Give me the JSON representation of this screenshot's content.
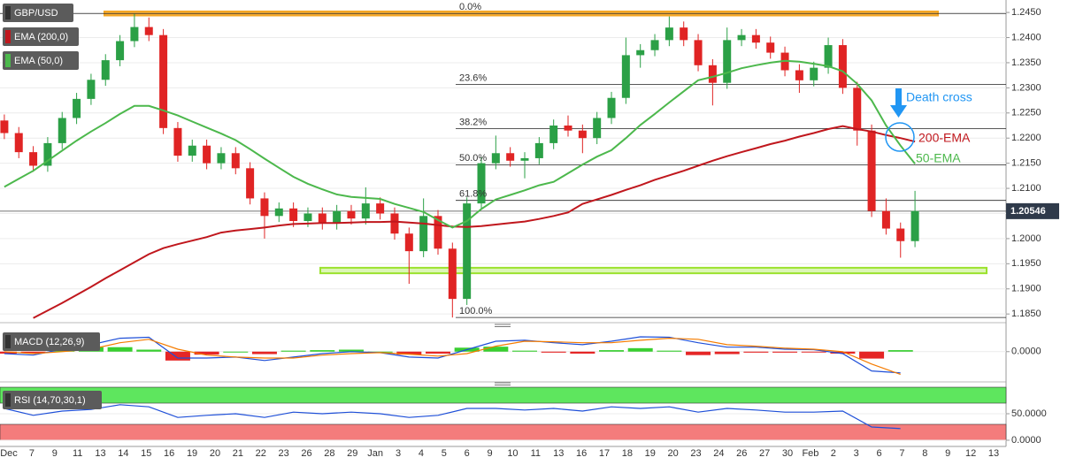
{
  "chart_data": [
    {
      "type": "candlestick",
      "title": "GBP/USD",
      "up_color": "#2ba046",
      "down_color": "#e02424",
      "xlim": [
        -0.3,
        69.3
      ],
      "open": [
        1.2235,
        1.221,
        1.2172,
        1.2145,
        1.219,
        1.224,
        1.2278,
        1.2316,
        1.2355,
        1.2393,
        1.2421,
        1.2405,
        1.222,
        1.2165,
        1.2185,
        1.215,
        1.217,
        1.214,
        1.208,
        1.2045,
        1.206,
        1.2035,
        1.205,
        1.203,
        1.2055,
        1.204,
        1.207,
        1.205,
        1.201,
        1.1975,
        1.2045,
        1.198,
        1.188,
        1.207,
        1.215,
        1.217,
        1.2155,
        1.216,
        1.219,
        1.2225,
        1.2215,
        1.22,
        1.224,
        1.228,
        1.2365,
        1.2375,
        1.2395,
        1.242,
        1.2395,
        1.2345,
        1.231,
        1.2395,
        1.2405,
        1.239,
        1.237,
        1.2335,
        1.2315,
        1.234,
        1.2385,
        1.23,
        1.2215,
        1.2055,
        1.202,
        1.1995
      ],
      "high": [
        1.2247,
        1.2222,
        1.2184,
        1.2202,
        1.2252,
        1.229,
        1.2328,
        1.2367,
        1.2405,
        1.2447,
        1.244,
        1.2417,
        1.2232,
        1.2197,
        1.2197,
        1.2182,
        1.2182,
        1.2152,
        1.2092,
        1.2072,
        1.2072,
        1.2062,
        1.2062,
        1.2067,
        1.2067,
        1.2102,
        1.2082,
        1.2062,
        1.2022,
        1.208,
        1.2057,
        1.1992,
        1.2082,
        1.2162,
        1.2205,
        1.2182,
        1.2172,
        1.2202,
        1.2237,
        1.2245,
        1.2227,
        1.2252,
        1.2292,
        1.24,
        1.2387,
        1.2407,
        1.2442,
        1.2432,
        1.2407,
        1.2357,
        1.242,
        1.2417,
        1.2417,
        1.2402,
        1.2382,
        1.2347,
        1.2352,
        1.24,
        1.2397,
        1.2312,
        1.2227,
        1.208,
        1.2032,
        1.2095
      ],
      "low": [
        1.2198,
        1.216,
        1.2133,
        1.2133,
        1.2178,
        1.2228,
        1.2266,
        1.2304,
        1.2343,
        1.2381,
        1.2393,
        1.2208,
        1.2153,
        1.2153,
        1.2138,
        1.2138,
        1.2128,
        1.2068,
        1.2,
        1.2033,
        1.2023,
        1.2023,
        1.2018,
        1.2018,
        1.2028,
        1.2028,
        1.2038,
        1.1998,
        1.191,
        1.1963,
        1.1968,
        1.1843,
        1.1868,
        1.2058,
        1.2138,
        1.2143,
        1.212,
        1.2148,
        1.2178,
        1.2203,
        1.217,
        1.2188,
        1.2228,
        1.2268,
        1.234,
        1.2363,
        1.2383,
        1.2383,
        1.2333,
        1.2265,
        1.2298,
        1.2383,
        1.2378,
        1.2358,
        1.2323,
        1.229,
        1.2303,
        1.2328,
        1.2288,
        1.2185,
        1.2043,
        1.2008,
        1.1962,
        1.1983
      ],
      "close": [
        1.221,
        1.2172,
        1.2145,
        1.219,
        1.224,
        1.2278,
        1.2316,
        1.2355,
        1.2393,
        1.2421,
        1.2405,
        1.222,
        1.2165,
        1.2185,
        1.215,
        1.217,
        1.214,
        1.208,
        1.2045,
        1.206,
        1.2035,
        1.205,
        1.203,
        1.2055,
        1.204,
        1.207,
        1.205,
        1.201,
        1.1975,
        1.2045,
        1.198,
        1.188,
        1.207,
        1.215,
        1.217,
        1.2155,
        1.216,
        1.219,
        1.2225,
        1.2215,
        1.22,
        1.224,
        1.228,
        1.2365,
        1.2375,
        1.2395,
        1.242,
        1.2395,
        1.2345,
        1.231,
        1.2395,
        1.2405,
        1.239,
        1.237,
        1.2335,
        1.2315,
        1.234,
        1.2385,
        1.23,
        1.2215,
        1.2055,
        1.202,
        1.1995,
        1.2055
      ],
      "series": [
        {
          "name": "EMA (200,0)",
          "color": "#c0171d",
          "values": [
            null,
            null,
            1.1842,
            1.1857,
            1.1872,
            1.1888,
            1.1904,
            1.1921,
            1.1937,
            1.1953,
            1.1969,
            1.1981,
            1.1989,
            1.1996,
            1.2003,
            1.2012,
            1.2016,
            1.2019,
            1.2022,
            1.2026,
            1.2029,
            1.203,
            1.2031,
            1.2031,
            1.2032,
            1.2033,
            1.2033,
            1.2034,
            1.2032,
            1.203,
            1.2027,
            1.2024,
            1.2023,
            1.2025,
            1.2028,
            1.2031,
            1.2034,
            1.2039,
            1.2045,
            1.2052,
            1.2069,
            1.2078,
            1.2087,
            1.2097,
            1.2106,
            1.2117,
            1.2126,
            1.2135,
            1.2145,
            1.2155,
            1.2164,
            1.2172,
            1.218,
            1.2188,
            1.2195,
            1.2203,
            1.221,
            1.2218,
            1.2224,
            1.2218,
            1.2213,
            1.2206,
            1.22,
            1.2193
          ]
        },
        {
          "name": "EMA (50,0)",
          "color": "#4cb84c",
          "values": [
            1.2103,
            1.2119,
            1.2135,
            1.2155,
            1.2175,
            1.2195,
            1.2213,
            1.223,
            1.2248,
            1.2264,
            1.2264,
            1.2255,
            1.2245,
            1.2233,
            1.2221,
            1.2209,
            1.2196,
            1.2178,
            1.2159,
            1.2141,
            1.2123,
            1.2109,
            1.2098,
            1.2088,
            1.2083,
            1.2081,
            1.2079,
            1.2069,
            1.2061,
            1.2053,
            1.2037,
            1.2022,
            1.2035,
            1.2059,
            1.2078,
            1.2087,
            1.2096,
            1.2106,
            1.2113,
            1.213,
            1.2147,
            1.2163,
            1.2176,
            1.22,
            1.2226,
            1.2248,
            1.2271,
            1.2293,
            1.2315,
            1.2322,
            1.233,
            1.2339,
            1.2345,
            1.235,
            1.2354,
            1.2352,
            1.2348,
            1.2343,
            1.2333,
            1.2308,
            1.2275,
            1.2225,
            1.2185,
            1.2149
          ]
        }
      ],
      "ylim": [
        1.1838,
        1.2466
      ],
      "yticks": [
        {
          "value": 1.185,
          "label": "1.1850"
        },
        {
          "value": 1.19,
          "label": "1.1900"
        },
        {
          "value": 1.195,
          "label": "1.1950"
        },
        {
          "value": 1.2,
          "label": "1.2000"
        },
        {
          "value": 1.205,
          "label": "1.2050"
        },
        {
          "value": 1.21,
          "label": "1.2100"
        },
        {
          "value": 1.215,
          "label": "1.2150"
        },
        {
          "value": 1.22,
          "label": "1.2200"
        },
        {
          "value": 1.225,
          "label": "1.2250"
        },
        {
          "value": 1.23,
          "label": "1.2300"
        },
        {
          "value": 1.235,
          "label": "1.2350"
        },
        {
          "value": 1.24,
          "label": "1.2400"
        },
        {
          "value": 1.245,
          "label": "1.2450"
        }
      ],
      "grid": true,
      "last_price": 1.20546,
      "fib_levels": [
        {
          "value": 1.2448,
          "label": "0.0%"
        },
        {
          "value": 1.2307,
          "label": "23.6%"
        },
        {
          "value": 1.2219,
          "label": "38.2%"
        },
        {
          "value": 1.2147,
          "label": "50.0%"
        },
        {
          "value": 1.2076,
          "label": "61.8%"
        },
        {
          "value": 1.1843,
          "label": "100.0%"
        }
      ],
      "zones": [
        {
          "from": 1.2444,
          "to": 1.2452,
          "color": "#f5a623"
        },
        {
          "from": 1.1931,
          "to": 1.1942,
          "color": "#9be22d"
        }
      ],
      "annotations": [
        {
          "text": "Death cross",
          "color": "#2196f3"
        },
        {
          "text": "200-EMA",
          "color": "#c0171d"
        },
        {
          "text": "50-EMA",
          "color": "#4cb84c"
        }
      ],
      "date_labels": [
        "Dec",
        "7",
        "9",
        "11",
        "13",
        "14",
        "15",
        "16",
        "19",
        "20",
        "21",
        "22",
        "23",
        "26",
        "28",
        "29",
        "Jan",
        "3",
        "4",
        "5",
        "6",
        "9",
        "10",
        "11",
        "13",
        "16",
        "17",
        "18",
        "19",
        "20",
        "23",
        "24",
        "26",
        "27",
        "30",
        "Feb",
        "2",
        "3",
        "6",
        "7",
        "8",
        "9",
        "12",
        "13"
      ]
    },
    {
      "type": "macd",
      "title": "MACD (12,26,9)",
      "x": [
        0,
        2,
        4,
        6,
        8,
        10,
        12,
        14,
        16,
        18,
        20,
        22,
        24,
        26,
        28,
        30,
        32,
        34,
        36,
        38,
        40,
        42,
        44,
        46,
        48,
        50,
        52,
        54,
        56,
        58,
        60,
        62
      ],
      "series": [
        {
          "color": "#1e4fd8",
          "values": [
            -0.0004,
            -0.0007,
            0.0005,
            0.0014,
            0.0027,
            0.0029,
            -0.0013,
            -0.0013,
            -0.0011,
            -0.0018,
            -0.0011,
            -0.0004,
            0,
            -0.0002,
            -0.0011,
            -0.0013,
            0.0004,
            0.0021,
            0.0023,
            0.0018,
            0.0014,
            0.0021,
            0.003,
            0.0029,
            0.0018,
            0.0009,
            0.0009,
            0.0005,
            0.0004,
            -0.0004,
            -0.0039,
            -0.0043
          ]
        },
        {
          "color": "#f57c00",
          "values": [
            0,
            -0.0004,
            0,
            0.0005,
            0.0018,
            0.0025,
            0.0005,
            -0.0007,
            -0.0011,
            -0.0013,
            -0.0013,
            -0.0007,
            -0.0004,
            -0.0002,
            -0.0005,
            -0.0009,
            -0.0004,
            0.0011,
            0.0021,
            0.002,
            0.0018,
            0.0018,
            0.0023,
            0.0027,
            0.0025,
            0.0014,
            0.0011,
            0.0007,
            0.0005,
            0,
            -0.0025,
            -0.0046
          ]
        }
      ],
      "histogram": {
        "up_color": "#16c60c",
        "down_color": "#e00000",
        "values": [
          -0.0004,
          -0.0003,
          0.0005,
          0.0009,
          0.0009,
          0.0004,
          -0.0018,
          -0.0006,
          0,
          -0.0005,
          0.0002,
          0.0003,
          0.0004,
          0,
          -0.0006,
          -0.0004,
          0.0008,
          0.001,
          0.0002,
          -0.0002,
          -0.0004,
          0.0003,
          0.0007,
          0.0002,
          -0.0007,
          -0.0005,
          -0.0002,
          -0.0002,
          -0.0001,
          -0.0004,
          -0.0014,
          0.0003
        ]
      },
      "ylim": [
        -0.0054,
        0.0046
      ],
      "yticks": [
        {
          "value": 0,
          "label": "0.0000"
        }
      ]
    },
    {
      "type": "rsi",
      "title": "RSI (14,70,30,1)",
      "x": [
        0,
        2,
        4,
        6,
        8,
        10,
        12,
        14,
        16,
        18,
        20,
        22,
        24,
        26,
        28,
        30,
        32,
        34,
        36,
        38,
        40,
        42,
        44,
        46,
        48,
        50,
        52,
        54,
        56,
        58,
        60,
        62
      ],
      "values": [
        60,
        47,
        55,
        58,
        67,
        63,
        43,
        47,
        50,
        43,
        53,
        50,
        53,
        50,
        43,
        47,
        60,
        60,
        57,
        60,
        55,
        63,
        60,
        63,
        53,
        60,
        57,
        53,
        53,
        55,
        25,
        22
      ],
      "color": "#1e4fd8",
      "bands": [
        {
          "from": 70,
          "to": 100,
          "color": "#5ee65e"
        },
        {
          "from": 0,
          "to": 30,
          "color": "#f47c7c"
        }
      ],
      "ylim": [
        -11.7,
        101.7
      ],
      "yticks": [
        {
          "value": 50,
          "label": "50.0000"
        },
        {
          "value": 0,
          "label": "0.0000"
        }
      ]
    }
  ]
}
